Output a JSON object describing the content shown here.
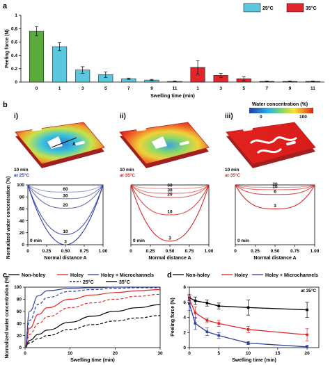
{
  "panels": {
    "a": "a",
    "b": "b",
    "c": "c",
    "d": "d",
    "roman": [
      "i)",
      "ii)",
      "iii)"
    ]
  },
  "colors": {
    "holey_25": "#5bc8dd",
    "holey_35": "#e0262a",
    "nonholey": "#5aab3c",
    "blue_dark": "#2e3f9c",
    "red_dark": "#d42a2a",
    "black": "#000000"
  },
  "panel_b": {
    "sims": [
      {
        "time": "10 min",
        "temp": "at 25°C",
        "temp_color": "#2e3f9c",
        "arrow_label": "A",
        "pattern": "blue-heavy"
      },
      {
        "time": "10 min",
        "temp": "at 35°C",
        "temp_color": "#e0262a",
        "pattern": "mixed"
      },
      {
        "time": "10 min",
        "temp": "at 35°C",
        "temp_color": "#e0262a",
        "pattern": "red"
      }
    ],
    "colorbar": {
      "title": "Water concentration (%)",
      "min": "0",
      "max": "100"
    }
  },
  "chart_data": [
    {
      "id": "a",
      "type": "bar",
      "ylabel": "Peeling force (N)",
      "xlabel": "Swelling time (min)",
      "ylim": [
        0,
        1.0
      ],
      "yticks": [
        "0",
        "0.2",
        "0.4",
        "0.6",
        "0.8",
        "1"
      ],
      "categories": [
        "0",
        "1",
        "3",
        "5",
        "7",
        "9",
        "11",
        "1",
        "3",
        "5",
        "7",
        "9",
        "11"
      ],
      "values": [
        0.76,
        0.53,
        0.18,
        0.11,
        0.05,
        0.03,
        0.01,
        0.22,
        0.1,
        0.05,
        0.01,
        0.01,
        0.01
      ],
      "errors": [
        0.07,
        0.06,
        0.05,
        0.04,
        0.01,
        0.01,
        0.005,
        0.1,
        0.03,
        0.03,
        0.005,
        0.005,
        0.005
      ],
      "groups": [
        "nonholey",
        "holey_25",
        "holey_25",
        "holey_25",
        "holey_25",
        "holey_25",
        "holey_25",
        "holey_35",
        "holey_35",
        "holey_35",
        "holey_35",
        "holey_35",
        "holey_35"
      ],
      "legend": [
        {
          "label": "25°C",
          "color": "#5bc8dd"
        },
        {
          "label": "35°C",
          "color": "#e0262a"
        }
      ]
    },
    {
      "id": "b-i",
      "type": "line",
      "xlabel": "Normal distance A",
      "ylabel": "Normalized water concentration (%)",
      "xlim": [
        0,
        1
      ],
      "ylim": [
        0,
        100
      ],
      "xticks": [
        "0",
        "0.25",
        "0.50",
        "0.75",
        "1.00"
      ],
      "yticks": [
        "0",
        "20",
        "40",
        "60",
        "80",
        "100"
      ],
      "corner_label": "0 min",
      "curves": [
        {
          "label": "60",
          "min": 88,
          "sharp": 3
        },
        {
          "label": "30",
          "min": 77,
          "sharp": 3
        },
        {
          "label": "20",
          "min": 61,
          "sharp": 2.6
        },
        {
          "label": "10",
          "min": 17,
          "sharp": 2.2
        },
        {
          "label": "3",
          "min": 0,
          "sharp": 2
        }
      ]
    },
    {
      "id": "b-ii",
      "type": "line",
      "xlabel": "Normal distance A",
      "xlim": [
        0,
        1
      ],
      "ylim": [
        0,
        100
      ],
      "xticks": [
        "0",
        "0.25",
        "0.50",
        "0.75",
        "1.00"
      ],
      "corner_label": "0 min",
      "curves": [
        {
          "label": "60",
          "min": 94,
          "sharp": 4
        },
        {
          "label": "30",
          "min": 86,
          "sharp": 3.5
        },
        {
          "label": "20",
          "min": 79,
          "sharp": 3.2
        },
        {
          "label": "10",
          "min": 50,
          "sharp": 2.6
        },
        {
          "label": "3",
          "min": 6,
          "sharp": 2.2
        }
      ]
    },
    {
      "id": "b-iii",
      "type": "line",
      "xlabel": "Normal distance A",
      "xlim": [
        0,
        1
      ],
      "ylim": [
        0,
        100
      ],
      "xticks": [
        "0",
        "0.25",
        "0.50",
        "0.75",
        "1.00"
      ],
      "corner_label": "0 min",
      "curves": [
        {
          "label": "20",
          "min": 96,
          "sharp": 4
        },
        {
          "label": "10",
          "min": 92,
          "sharp": 4
        },
        {
          "label": "6",
          "min": 84,
          "sharp": 3.5
        },
        {
          "label": "3",
          "min": 60,
          "sharp": 3
        }
      ]
    },
    {
      "id": "c",
      "type": "line",
      "xlabel": "Swelling time (min)",
      "ylabel": "Normalized water concentration (%)",
      "xlim": [
        0,
        30
      ],
      "ylim": [
        0,
        100
      ],
      "xticks": [
        "0",
        "10",
        "20",
        "30"
      ],
      "yticks": [
        "0",
        "20",
        "40",
        "60",
        "80",
        "100"
      ],
      "legend": [
        {
          "label": "Non-holey",
          "color": "#000000",
          "dash": false
        },
        {
          "label": "Holey",
          "color": "#e0262a",
          "dash": false
        },
        {
          "label": "Holey + Microchannels",
          "color": "#2e3f9c",
          "dash": false
        },
        {
          "label": "25°C",
          "color": "#000000",
          "dash": true
        },
        {
          "label": "35°C",
          "color": "#000000",
          "dash": false
        }
      ],
      "series": [
        {
          "name": "Non-holey",
          "temp": "25°C",
          "color": "#000000",
          "dash": true,
          "points": [
            [
              0,
              0
            ],
            [
              1,
              8
            ],
            [
              3,
              15
            ],
            [
              5,
              20
            ],
            [
              10,
              30
            ],
            [
              15,
              38
            ],
            [
              20,
              44
            ],
            [
              25,
              49
            ],
            [
              30,
              53
            ]
          ]
        },
        {
          "name": "Non-holey",
          "temp": "35°C",
          "color": "#000000",
          "dash": false,
          "points": [
            [
              0,
              0
            ],
            [
              1,
              12
            ],
            [
              3,
              22
            ],
            [
              5,
              29
            ],
            [
              10,
              42
            ],
            [
              15,
              52
            ],
            [
              20,
              60
            ],
            [
              25,
              66
            ],
            [
              30,
              71
            ]
          ]
        },
        {
          "name": "Holey",
          "temp": "25°C",
          "color": "#e0262a",
          "dash": true,
          "points": [
            [
              0,
              0
            ],
            [
              1,
              22
            ],
            [
              3,
              40
            ],
            [
              5,
              51
            ],
            [
              10,
              66
            ],
            [
              15,
              74
            ],
            [
              20,
              80
            ],
            [
              25,
              85
            ],
            [
              30,
              88
            ]
          ]
        },
        {
          "name": "Holey",
          "temp": "35°C",
          "color": "#e0262a",
          "dash": false,
          "points": [
            [
              0,
              0
            ],
            [
              1,
              32
            ],
            [
              3,
              55
            ],
            [
              5,
              66
            ],
            [
              10,
              80
            ],
            [
              15,
              87
            ],
            [
              20,
              91
            ],
            [
              25,
              94
            ],
            [
              30,
              96
            ]
          ]
        },
        {
          "name": "Holey + Microchannels",
          "temp": "25°C",
          "color": "#2e3f9c",
          "dash": true,
          "points": [
            [
              0,
              0
            ],
            [
              1,
              45
            ],
            [
              3,
              72
            ],
            [
              5,
              83
            ],
            [
              10,
              93
            ],
            [
              15,
              96
            ],
            [
              20,
              98
            ],
            [
              25,
              99
            ],
            [
              30,
              99
            ]
          ]
        },
        {
          "name": "Holey + Microchannels",
          "temp": "35°C",
          "color": "#2e3f9c",
          "dash": false,
          "points": [
            [
              0,
              0
            ],
            [
              1,
              60
            ],
            [
              3,
              86
            ],
            [
              5,
              94
            ],
            [
              10,
              98
            ],
            [
              15,
              99
            ],
            [
              20,
              100
            ],
            [
              25,
              100
            ],
            [
              30,
              100
            ]
          ]
        }
      ]
    },
    {
      "id": "d",
      "type": "line",
      "xlabel": "Swelling time (min)",
      "ylabel": "Peeling force (N)",
      "xlim": [
        0,
        22
      ],
      "ylim": [
        0,
        8
      ],
      "xticks": [
        "0",
        "5",
        "10",
        "15",
        "20"
      ],
      "yticks": [
        "0",
        "2",
        "4",
        "6",
        "8"
      ],
      "annotation": "at 35°C",
      "legend": [
        {
          "label": "Non-holey",
          "color": "#000000"
        },
        {
          "label": "Holey",
          "color": "#e0262a"
        },
        {
          "label": "Holey + Microchannels",
          "color": "#2e3f9c"
        }
      ],
      "series": [
        {
          "name": "Non-holey",
          "color": "#000000",
          "points": [
            [
              0,
              6.6,
              0.4
            ],
            [
              1,
              6.2,
              0.5
            ],
            [
              3,
              5.9,
              0.4
            ],
            [
              5,
              5.5,
              0.4
            ],
            [
              10,
              5.3,
              1.0
            ],
            [
              20,
              5.0,
              1.0
            ]
          ]
        },
        {
          "name": "Holey",
          "color": "#e0262a",
          "points": [
            [
              0,
              6.4,
              0.5
            ],
            [
              1,
              4.6,
              0.8
            ],
            [
              3,
              3.6,
              0.3
            ],
            [
              5,
              3.2,
              0.4
            ],
            [
              10,
              2.4,
              0.4
            ],
            [
              20,
              1.7,
              0.8
            ]
          ]
        },
        {
          "name": "Holey + Microchannels",
          "color": "#2e3f9c",
          "points": [
            [
              0,
              5.8,
              0.9
            ],
            [
              1,
              3.2,
              0.8
            ],
            [
              3,
              2.1,
              0.5
            ],
            [
              5,
              1.6,
              0.4
            ],
            [
              10,
              0.6,
              0.2
            ],
            [
              20,
              0.1,
              0.2
            ]
          ]
        }
      ]
    }
  ]
}
